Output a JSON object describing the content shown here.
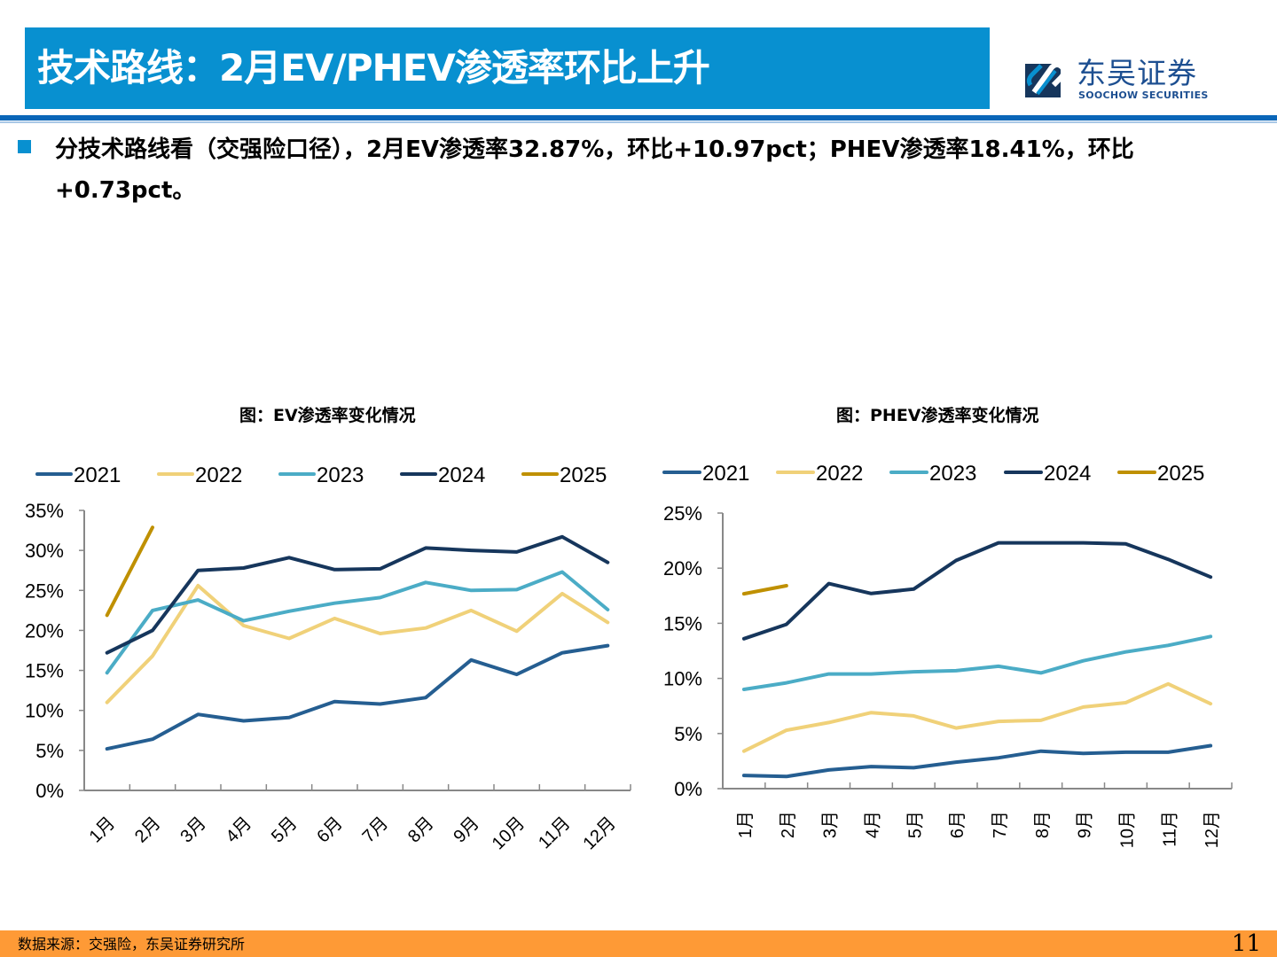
{
  "header": {
    "title": "技术路线：2月EV/PHEV渗透率环比上升",
    "logo_cn": "东吴证券",
    "logo_en": "SOOCHOW SECURITIES",
    "accent_color": "#0890d0"
  },
  "summary": {
    "bullet_icon": "square-bullet-icon",
    "text": "分技术路线看（交强险口径），2月EV渗透率32.87%，环比+10.97pct；PHEV渗透率18.41%，环比+0.73pct。"
  },
  "footer": {
    "source": "数据来源：交强险，东吴证券研究所",
    "page_number": "11"
  },
  "chart_data": [
    {
      "type": "line",
      "title": "图：EV渗透率变化情况",
      "xlabel": "",
      "ylabel": "",
      "categories": [
        "1月",
        "2月",
        "3月",
        "4月",
        "5月",
        "6月",
        "7月",
        "8月",
        "9月",
        "10月",
        "11月",
        "12月"
      ],
      "yticks": [
        "0%",
        "5%",
        "10%",
        "15%",
        "20%",
        "25%",
        "30%",
        "35%"
      ],
      "ylim": [
        0,
        35
      ],
      "ytick_step": 5,
      "legend": "top",
      "grid": false,
      "series": [
        {
          "name": "2021",
          "color": "#255e91",
          "values": [
            5.2,
            6.4,
            9.5,
            8.7,
            9.1,
            11.1,
            10.8,
            11.6,
            16.3,
            14.5,
            17.2,
            18.1
          ]
        },
        {
          "name": "2022",
          "color": "#f0d179",
          "values": [
            11.0,
            16.8,
            25.6,
            20.6,
            19.0,
            21.5,
            19.6,
            20.3,
            22.5,
            19.9,
            24.6,
            21.0
          ]
        },
        {
          "name": "2023",
          "color": "#4bacc6",
          "values": [
            14.7,
            22.5,
            23.8,
            21.2,
            22.4,
            23.4,
            24.1,
            26.0,
            25.0,
            25.1,
            27.3,
            22.6
          ]
        },
        {
          "name": "2024",
          "color": "#16365c",
          "values": [
            17.2,
            20.0,
            27.5,
            27.8,
            29.1,
            27.6,
            27.7,
            30.3,
            30.0,
            29.8,
            31.7,
            28.5
          ]
        },
        {
          "name": "2025",
          "color": "#bf9000",
          "values": [
            21.9,
            32.87
          ]
        }
      ]
    },
    {
      "type": "line",
      "title": "图：PHEV渗透率变化情况",
      "xlabel": "",
      "ylabel": "",
      "categories": [
        "1月",
        "2月",
        "3月",
        "4月",
        "5月",
        "6月",
        "7月",
        "8月",
        "9月",
        "10月",
        "11月",
        "12月"
      ],
      "yticks": [
        "0%",
        "5%",
        "10%",
        "15%",
        "20%",
        "25%"
      ],
      "ylim": [
        0,
        25
      ],
      "ytick_step": 5,
      "legend": "top",
      "grid": false,
      "series": [
        {
          "name": "2021",
          "color": "#255e91",
          "values": [
            1.2,
            1.1,
            1.7,
            2.0,
            1.9,
            2.4,
            2.8,
            3.4,
            3.2,
            3.3,
            3.3,
            3.9
          ]
        },
        {
          "name": "2022",
          "color": "#f0d179",
          "values": [
            3.4,
            5.3,
            6.0,
            6.9,
            6.6,
            5.5,
            6.1,
            6.2,
            7.4,
            7.8,
            9.5,
            7.7
          ]
        },
        {
          "name": "2023",
          "color": "#4bacc6",
          "values": [
            9.0,
            9.6,
            10.4,
            10.4,
            10.6,
            10.7,
            11.1,
            10.5,
            11.6,
            12.4,
            13.0,
            13.8
          ]
        },
        {
          "name": "2024",
          "color": "#16365c",
          "values": [
            13.6,
            14.9,
            18.6,
            17.7,
            18.1,
            20.7,
            22.3,
            22.3,
            22.3,
            22.2,
            20.8,
            19.2
          ]
        },
        {
          "name": "2025",
          "color": "#bf9000",
          "values": [
            17.68,
            18.41
          ]
        }
      ]
    }
  ]
}
